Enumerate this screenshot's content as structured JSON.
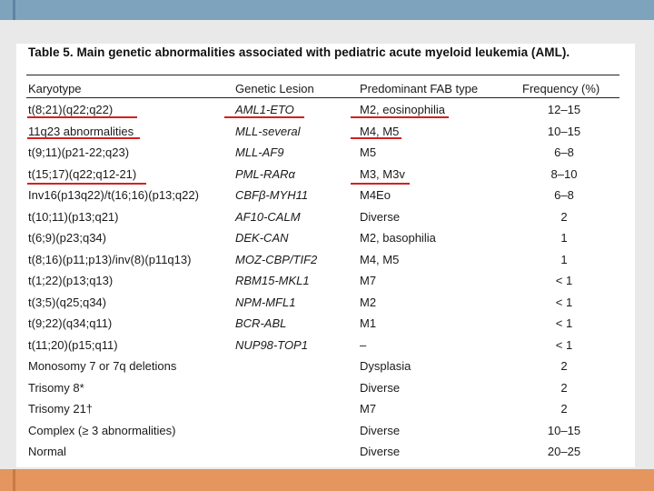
{
  "slide": {
    "top_band_color": "#7ea3bd",
    "bottom_band_color": "#e5955e",
    "highlight_color": "#d42020"
  },
  "table": {
    "title": "Table 5. Main genetic abnormalities associated with pediatric acute myeloid leukemia (AML).",
    "headers": {
      "karyotype": "Karyotype",
      "genetic_lesion": "Genetic Lesion",
      "fab_type": "Predominant FAB type",
      "frequency": "Frequency (%)"
    },
    "rows": [
      {
        "karyotype": "t(8;21)(q22;q22)",
        "lesion": "AML1-ETO",
        "fab": "M2, eosinophilia",
        "freq": "12–15"
      },
      {
        "karyotype": "11q23 abnormalities",
        "lesion": "MLL-several",
        "fab": "M4, M5",
        "freq": "10–15"
      },
      {
        "karyotype": "t(9;11)(p21-22;q23)",
        "lesion": "MLL-AF9",
        "fab": "M5",
        "freq": "6–8"
      },
      {
        "karyotype": "t(15;17)(q22;q12-21)",
        "lesion": "PML-RARα",
        "fab": "M3, M3v",
        "freq": "8–10"
      },
      {
        "karyotype": "Inv16(p13q22)/t(16;16)(p13;q22)",
        "lesion": "CBFβ-MYH11",
        "fab": "M4Eo",
        "freq": "6–8"
      },
      {
        "karyotype": "t(10;11)(p13;q21)",
        "lesion": "AF10-CALM",
        "fab": "Diverse",
        "freq": "2"
      },
      {
        "karyotype": "t(6;9)(p23;q34)",
        "lesion": "DEK-CAN",
        "fab": "M2, basophilia",
        "freq": "1"
      },
      {
        "karyotype": "t(8;16)(p11;p13)/inv(8)(p11q13)",
        "lesion": "MOZ-CBP/TIF2",
        "fab": "M4, M5",
        "freq": "1"
      },
      {
        "karyotype": "t(1;22)(p13;q13)",
        "lesion": "RBM15-MKL1",
        "fab": "M7",
        "freq": "< 1"
      },
      {
        "karyotype": "t(3;5)(q25;q34)",
        "lesion": "NPM-MFL1",
        "fab": "M2",
        "freq": "< 1"
      },
      {
        "karyotype": "t(9;22)(q34;q11)",
        "lesion": "BCR-ABL",
        "fab": "M1",
        "freq": "< 1"
      },
      {
        "karyotype": "t(11;20)(p15;q11)",
        "lesion": "NUP98-TOP1",
        "fab": "–",
        "freq": "< 1"
      },
      {
        "karyotype": "Monosomy 7 or 7q deletions",
        "lesion": "",
        "fab": "Dysplasia",
        "freq": "2"
      },
      {
        "karyotype": "Trisomy 8*",
        "lesion": "",
        "fab": "Diverse",
        "freq": "2"
      },
      {
        "karyotype": "Trisomy 21†",
        "lesion": "",
        "fab": "M7",
        "freq": "2"
      },
      {
        "karyotype": "Complex (≥ 3 abnormalities)",
        "lesion": "",
        "fab": "Diverse",
        "freq": "10–15"
      },
      {
        "karyotype": "Normal",
        "lesion": "",
        "fab": "Diverse",
        "freq": "20–25"
      }
    ]
  }
}
